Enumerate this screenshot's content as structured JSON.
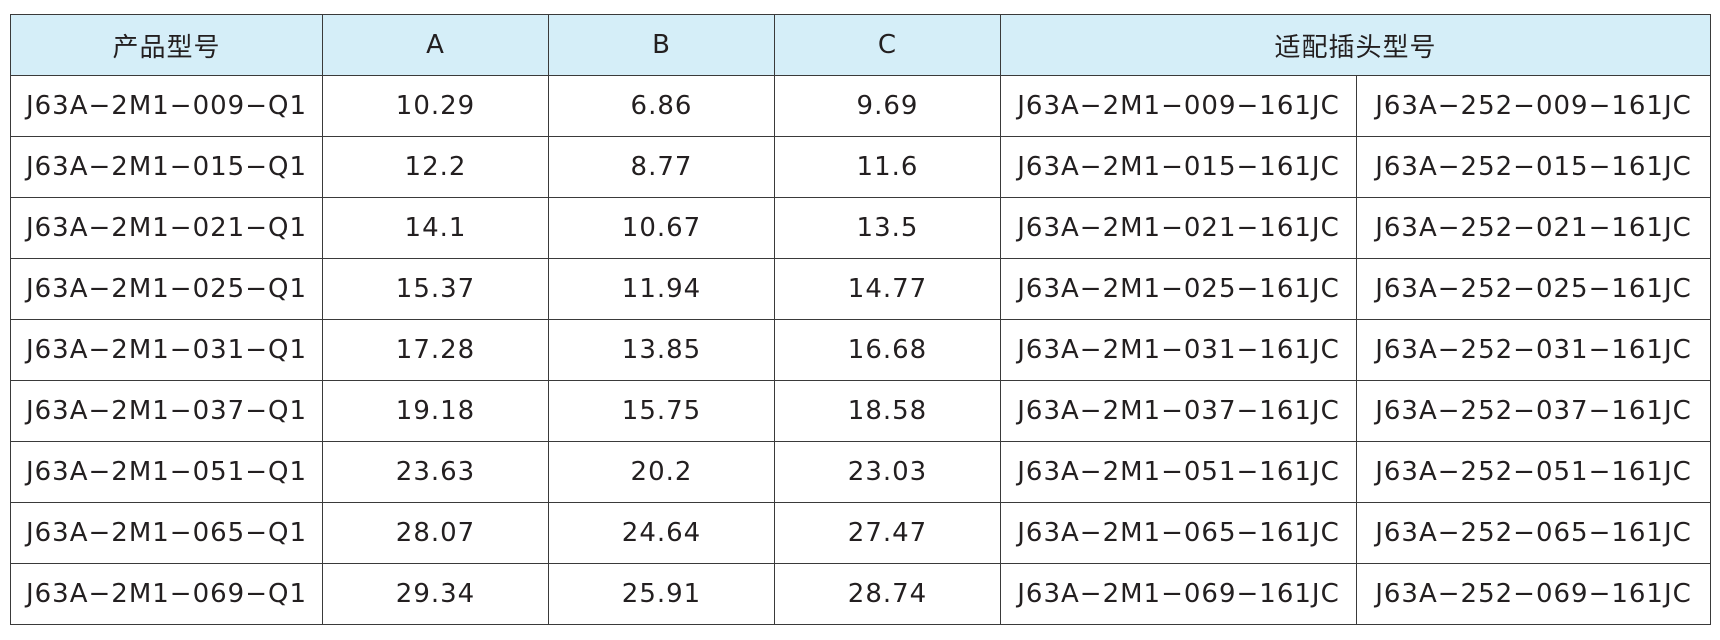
{
  "table": {
    "headers": {
      "model": "产品型号",
      "a": "A",
      "b": "B",
      "c": "C",
      "plug": "适配插头型号"
    },
    "rows": [
      {
        "model": "J63A−2M1−009−Q1",
        "a": "10.29",
        "b": "6.86",
        "c": "9.69",
        "plug1": "J63A−2M1−009−161JC",
        "plug2": "J63A−252−009−161JC"
      },
      {
        "model": "J63A−2M1−015−Q1",
        "a": "12.2",
        "b": "8.77",
        "c": "11.6",
        "plug1": "J63A−2M1−015−161JC",
        "plug2": "J63A−252−015−161JC"
      },
      {
        "model": "J63A−2M1−021−Q1",
        "a": "14.1",
        "b": "10.67",
        "c": "13.5",
        "plug1": "J63A−2M1−021−161JC",
        "plug2": "J63A−252−021−161JC"
      },
      {
        "model": "J63A−2M1−025−Q1",
        "a": "15.37",
        "b": "11.94",
        "c": "14.77",
        "plug1": "J63A−2M1−025−161JC",
        "plug2": "J63A−252−025−161JC"
      },
      {
        "model": "J63A−2M1−031−Q1",
        "a": "17.28",
        "b": "13.85",
        "c": "16.68",
        "plug1": "J63A−2M1−031−161JC",
        "plug2": "J63A−252−031−161JC"
      },
      {
        "model": "J63A−2M1−037−Q1",
        "a": "19.18",
        "b": "15.75",
        "c": "18.58",
        "plug1": "J63A−2M1−037−161JC",
        "plug2": "J63A−252−037−161JC"
      },
      {
        "model": "J63A−2M1−051−Q1",
        "a": "23.63",
        "b": "20.2",
        "c": "23.03",
        "plug1": "J63A−2M1−051−161JC",
        "plug2": "J63A−252−051−161JC"
      },
      {
        "model": "J63A−2M1−065−Q1",
        "a": "28.07",
        "b": "24.64",
        "c": "27.47",
        "plug1": "J63A−2M1−065−161JC",
        "plug2": "J63A−252−065−161JC"
      },
      {
        "model": "J63A−2M1−069−Q1",
        "a": "29.34",
        "b": "25.91",
        "c": "28.74",
        "plug1": "J63A−2M1−069−161JC",
        "plug2": "J63A−252−069−161JC"
      }
    ]
  },
  "colors": {
    "header_background": "#d5eef8",
    "grid_line": "#3a3a3a",
    "text": "#231f20"
  }
}
